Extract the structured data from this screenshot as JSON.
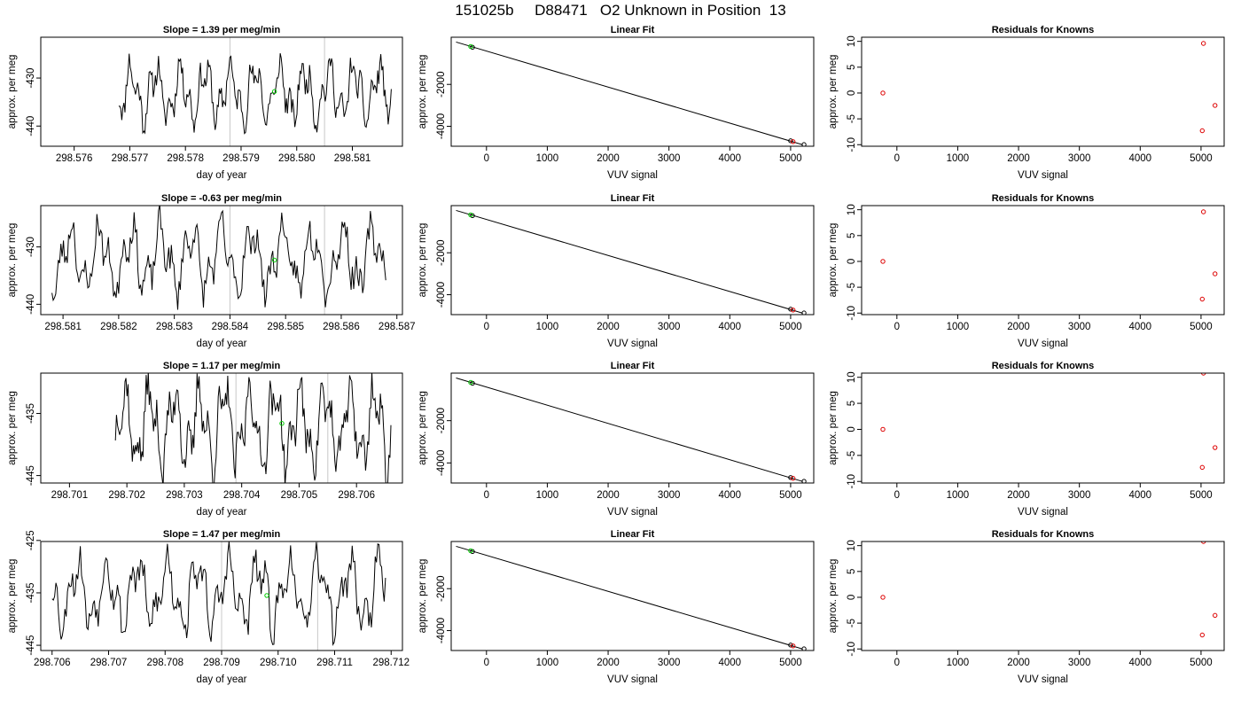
{
  "page": {
    "title": "151025b     D88471   O2 Unknown in Position  13"
  },
  "chart_data": [
    {
      "type": "line",
      "row": 1,
      "kind": "slope",
      "title": "Slope =  1.39  per meg/min",
      "xlabel": "day of year",
      "ylabel": "approx. per meg",
      "xlim": [
        298.5754,
        298.5819
      ],
      "ylim": [
        -444.2,
        -421.5
      ],
      "xticks": [
        "298.576",
        "298.577",
        "298.578",
        "298.579",
        "298.580",
        "298.581"
      ],
      "xtick_values": [
        298.576,
        298.577,
        298.578,
        298.579,
        298.58,
        298.581
      ],
      "yticks": [
        "-430",
        "-440"
      ],
      "ytick_values": [
        -430,
        -440
      ],
      "vlines": [
        298.5788,
        298.5805
      ],
      "marker": {
        "x": 298.5796,
        "y": -432.8
      },
      "x_start": 298.5768,
      "x_end": 298.5817,
      "y_base": -433,
      "y_amp": 8,
      "seed": 11,
      "colors": {
        "line": "#000000",
        "marker": "#00cc00",
        "vline": "#c8c8c8"
      }
    },
    {
      "type": "scatter",
      "row": 1,
      "kind": "fit",
      "title": "Linear Fit",
      "xlabel": "VUV signal",
      "ylabel": "approx. per meg",
      "xlim": [
        -580,
        5380
      ],
      "ylim": [
        -4950,
        250
      ],
      "xticks": [
        "0",
        "1000",
        "2000",
        "3000",
        "4000",
        "5000"
      ],
      "xtick_values": [
        0,
        1000,
        2000,
        3000,
        4000,
        5000
      ],
      "yticks": [
        "-2000",
        "-4000"
      ],
      "ytick_values": [
        -2000,
        -4000
      ],
      "line": {
        "x": [
          -500,
          5200
        ],
        "y": [
          20,
          -4880
        ]
      },
      "green_points": [
        {
          "x": -260,
          "y": -190
        }
      ],
      "black_points": [
        {
          "x": -230,
          "y": -230
        },
        {
          "x": 5000,
          "y": -4690
        },
        {
          "x": 5220,
          "y": -4870
        }
      ],
      "red_points": [
        {
          "x": 5040,
          "y": -4730
        }
      ],
      "colors": {
        "line": "#000000",
        "green": "#00cc00",
        "red": "#dd0000",
        "black": "#000000"
      }
    },
    {
      "type": "scatter",
      "row": 1,
      "kind": "resid",
      "title": "Residuals for Knowns",
      "xlabel": "VUV signal",
      "ylabel": "approx. per meg",
      "xlim": [
        -580,
        5380
      ],
      "ylim": [
        -10.3,
        10.8
      ],
      "xticks": [
        "0",
        "1000",
        "2000",
        "3000",
        "4000",
        "5000"
      ],
      "xtick_values": [
        0,
        1000,
        2000,
        3000,
        4000,
        5000
      ],
      "yticks": [
        "10",
        "5",
        "0",
        "-5",
        "-10"
      ],
      "ytick_values": [
        10,
        5,
        0,
        -5,
        -10
      ],
      "red_points": [
        {
          "x": -230,
          "y": 0
        },
        {
          "x": 5040,
          "y": 9.6
        },
        {
          "x": 5230,
          "y": -2.4
        },
        {
          "x": 5020,
          "y": -7.3
        }
      ],
      "colors": {
        "red": "#dd0000"
      }
    },
    {
      "type": "line",
      "row": 2,
      "kind": "slope",
      "title": "Slope =  -0.63  per meg/min",
      "xlabel": "day of year",
      "ylabel": "approx. per meg",
      "xlim": [
        298.5806,
        298.5871
      ],
      "ylim": [
        -441.8,
        -422.8
      ],
      "xticks": [
        "298.581",
        "298.582",
        "298.583",
        "298.584",
        "298.585",
        "298.586",
        "298.587"
      ],
      "xtick_values": [
        298.581,
        298.582,
        298.583,
        298.584,
        298.585,
        298.586,
        298.587
      ],
      "yticks": [
        "-430",
        "-440"
      ],
      "ytick_values": [
        -430,
        -440
      ],
      "vlines": [
        298.584,
        298.5857
      ],
      "marker": {
        "x": 298.5848,
        "y": -432.3
      },
      "x_start": 298.5808,
      "x_end": 298.5868,
      "y_base": -432,
      "y_amp": 8,
      "seed": 23,
      "colors": {
        "line": "#000000",
        "marker": "#00cc00",
        "vline": "#c8c8c8"
      }
    },
    {
      "type": "scatter",
      "row": 2,
      "kind": "fit",
      "title": "Linear Fit",
      "xlabel": "VUV signal",
      "ylabel": "approx. per meg",
      "xlim": [
        -580,
        5380
      ],
      "ylim": [
        -4950,
        250
      ],
      "xticks": [
        "0",
        "1000",
        "2000",
        "3000",
        "4000",
        "5000"
      ],
      "xtick_values": [
        0,
        1000,
        2000,
        3000,
        4000,
        5000
      ],
      "yticks": [
        "-2000",
        "-4000"
      ],
      "ytick_values": [
        -2000,
        -4000
      ],
      "line": {
        "x": [
          -500,
          5200
        ],
        "y": [
          20,
          -4880
        ]
      },
      "green_points": [
        {
          "x": -260,
          "y": -190
        }
      ],
      "black_points": [
        {
          "x": -230,
          "y": -230
        },
        {
          "x": 5000,
          "y": -4690
        },
        {
          "x": 5220,
          "y": -4870
        }
      ],
      "red_points": [
        {
          "x": 5040,
          "y": -4730
        }
      ],
      "colors": {
        "line": "#000000",
        "green": "#00cc00",
        "red": "#dd0000",
        "black": "#000000"
      }
    },
    {
      "type": "scatter",
      "row": 2,
      "kind": "resid",
      "title": "Residuals for Knowns",
      "xlabel": "VUV signal",
      "ylabel": "approx. per meg",
      "xlim": [
        -580,
        5380
      ],
      "ylim": [
        -10.3,
        10.8
      ],
      "xticks": [
        "0",
        "1000",
        "2000",
        "3000",
        "4000",
        "5000"
      ],
      "xtick_values": [
        0,
        1000,
        2000,
        3000,
        4000,
        5000
      ],
      "yticks": [
        "10",
        "5",
        "0",
        "-5",
        "-10"
      ],
      "ytick_values": [
        10,
        5,
        0,
        -5,
        -10
      ],
      "red_points": [
        {
          "x": -230,
          "y": 0
        },
        {
          "x": 5040,
          "y": 9.6
        },
        {
          "x": 5230,
          "y": -2.4
        },
        {
          "x": 5020,
          "y": -7.3
        }
      ],
      "colors": {
        "red": "#dd0000"
      }
    },
    {
      "type": "line",
      "row": 3,
      "kind": "slope",
      "title": "Slope =  1.17  per meg/min",
      "xlabel": "day of year",
      "ylabel": "approx. per meg",
      "xlim": [
        298.7005,
        298.7068
      ],
      "ylim": [
        -446.2,
        -428.5
      ],
      "xticks": [
        "298.701",
        "298.702",
        "298.703",
        "298.704",
        "298.705",
        "298.706"
      ],
      "xtick_values": [
        298.701,
        298.702,
        298.703,
        298.704,
        298.705,
        298.706
      ],
      "yticks": [
        "-435",
        "-445"
      ],
      "ytick_values": [
        -435,
        -445
      ],
      "vlines": [
        298.7039,
        298.7055
      ],
      "marker": {
        "x": 298.7047,
        "y": -436.6
      },
      "x_start": 298.7018,
      "x_end": 298.7066,
      "y_base": -437,
      "y_amp": 9,
      "seed": 37,
      "colors": {
        "line": "#000000",
        "marker": "#00cc00",
        "vline": "#c8c8c8"
      }
    },
    {
      "type": "scatter",
      "row": 3,
      "kind": "fit",
      "title": "Linear Fit",
      "xlabel": "VUV signal",
      "ylabel": "approx. per meg",
      "xlim": [
        -580,
        5380
      ],
      "ylim": [
        -4950,
        250
      ],
      "xticks": [
        "0",
        "1000",
        "2000",
        "3000",
        "4000",
        "5000"
      ],
      "xtick_values": [
        0,
        1000,
        2000,
        3000,
        4000,
        5000
      ],
      "yticks": [
        "-2000",
        "-4000"
      ],
      "ytick_values": [
        -2000,
        -4000
      ],
      "line": {
        "x": [
          -500,
          5200
        ],
        "y": [
          20,
          -4880
        ]
      },
      "green_points": [
        {
          "x": -260,
          "y": -190
        }
      ],
      "black_points": [
        {
          "x": -230,
          "y": -230
        },
        {
          "x": 5000,
          "y": -4690
        },
        {
          "x": 5220,
          "y": -4870
        }
      ],
      "red_points": [
        {
          "x": 5040,
          "y": -4730
        }
      ],
      "colors": {
        "line": "#000000",
        "green": "#00cc00",
        "red": "#dd0000",
        "black": "#000000"
      }
    },
    {
      "type": "scatter",
      "row": 3,
      "kind": "resid",
      "title": "Residuals for Knowns",
      "xlabel": "VUV signal",
      "ylabel": "approx. per meg",
      "xlim": [
        -580,
        5380
      ],
      "ylim": [
        -10.3,
        10.8
      ],
      "xticks": [
        "0",
        "1000",
        "2000",
        "3000",
        "4000",
        "5000"
      ],
      "xtick_values": [
        0,
        1000,
        2000,
        3000,
        4000,
        5000
      ],
      "yticks": [
        "10",
        "5",
        "0",
        "-5",
        "-10"
      ],
      "ytick_values": [
        10,
        5,
        0,
        -5,
        -10
      ],
      "red_points": [
        {
          "x": -230,
          "y": 0
        },
        {
          "x": 5040,
          "y": 10.8
        },
        {
          "x": 5230,
          "y": -3.5
        },
        {
          "x": 5020,
          "y": -7.3
        }
      ],
      "colors": {
        "red": "#dd0000"
      }
    },
    {
      "type": "line",
      "row": 4,
      "kind": "slope",
      "title": "Slope =  1.47  per meg/min",
      "xlabel": "day of year",
      "ylabel": "approx. per meg",
      "xlim": [
        298.7058,
        298.7122
      ],
      "ylim": [
        -446.0,
        -425.2
      ],
      "xticks": [
        "298.706",
        "298.707",
        "298.708",
        "298.709",
        "298.710",
        "298.711",
        "298.712"
      ],
      "xtick_values": [
        298.706,
        298.707,
        298.708,
        298.709,
        298.71,
        298.711,
        298.712
      ],
      "yticks": [
        "-425",
        "-435",
        "-445"
      ],
      "ytick_values": [
        -425,
        -435,
        -445
      ],
      "vlines": [
        298.709,
        298.7107
      ],
      "marker": {
        "x": 298.7098,
        "y": -435.5
      },
      "x_start": 298.706,
      "x_end": 298.7119,
      "y_base": -435,
      "y_amp": 9,
      "seed": 53,
      "colors": {
        "line": "#000000",
        "marker": "#00cc00",
        "vline": "#c8c8c8"
      }
    },
    {
      "type": "scatter",
      "row": 4,
      "kind": "fit",
      "title": "Linear Fit",
      "xlabel": "VUV signal",
      "ylabel": "approx. per meg",
      "xlim": [
        -580,
        5380
      ],
      "ylim": [
        -4950,
        250
      ],
      "xticks": [
        "0",
        "1000",
        "2000",
        "3000",
        "4000",
        "5000"
      ],
      "xtick_values": [
        0,
        1000,
        2000,
        3000,
        4000,
        5000
      ],
      "yticks": [
        "-2000",
        "-4000"
      ],
      "ytick_values": [
        -2000,
        -4000
      ],
      "line": {
        "x": [
          -500,
          5200
        ],
        "y": [
          20,
          -4880
        ]
      },
      "green_points": [
        {
          "x": -260,
          "y": -190
        }
      ],
      "black_points": [
        {
          "x": -230,
          "y": -230
        },
        {
          "x": 5000,
          "y": -4690
        },
        {
          "x": 5220,
          "y": -4870
        }
      ],
      "red_points": [
        {
          "x": 5040,
          "y": -4730
        }
      ],
      "colors": {
        "line": "#000000",
        "green": "#00cc00",
        "red": "#dd0000",
        "black": "#000000"
      }
    },
    {
      "type": "scatter",
      "row": 4,
      "kind": "resid",
      "title": "Residuals for Knowns",
      "xlabel": "VUV signal",
      "ylabel": "approx. per meg",
      "xlim": [
        -580,
        5380
      ],
      "ylim": [
        -10.3,
        10.8
      ],
      "xticks": [
        "0",
        "1000",
        "2000",
        "3000",
        "4000",
        "5000"
      ],
      "xtick_values": [
        0,
        1000,
        2000,
        3000,
        4000,
        5000
      ],
      "yticks": [
        "10",
        "5",
        "0",
        "-5",
        "-10"
      ],
      "ytick_values": [
        10,
        5,
        0,
        -5,
        -10
      ],
      "red_points": [
        {
          "x": -230,
          "y": 0
        },
        {
          "x": 5040,
          "y": 10.8
        },
        {
          "x": 5230,
          "y": -3.5
        },
        {
          "x": 5020,
          "y": -7.3
        }
      ],
      "colors": {
        "red": "#dd0000"
      }
    }
  ]
}
